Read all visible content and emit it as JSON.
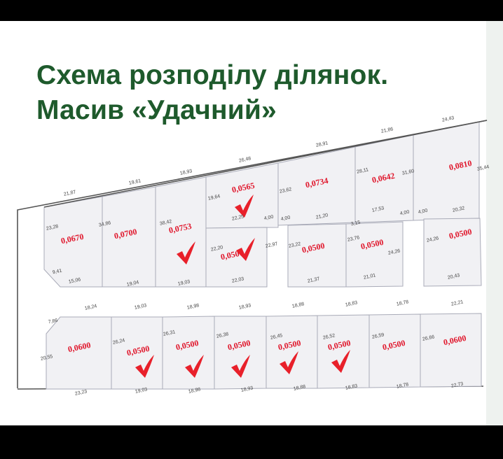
{
  "title": {
    "line1": "Схема розподілу ділянок.",
    "line2": "Масив «Удачний»"
  },
  "colors": {
    "title": "#1e5a2c",
    "area_label": "#e0162b",
    "check": "#e8202a",
    "plot_fill": "#f1f1f4"
  },
  "plots": [
    {
      "area": "0,0670",
      "checked": false
    },
    {
      "area": "0,0700",
      "checked": false
    },
    {
      "area": "0,0753",
      "checked": true
    },
    {
      "area": "0,0565",
      "checked": true
    },
    {
      "area": "0,0500",
      "checked": true
    },
    {
      "area": "0,0734",
      "checked": false
    },
    {
      "area": "0,0642",
      "checked": false
    },
    {
      "area": "0,0810",
      "checked": false
    },
    {
      "area": "0,0500",
      "checked": false
    },
    {
      "area": "0,0500",
      "checked": false
    },
    {
      "area": "0,0500",
      "checked": false
    },
    {
      "area": "0,0600",
      "checked": false
    },
    {
      "area": "0,0500",
      "checked": true
    },
    {
      "area": "0,0500",
      "checked": true
    },
    {
      "area": "0,0500",
      "checked": true
    },
    {
      "area": "0,0500",
      "checked": true
    },
    {
      "area": "0,0500",
      "checked": true
    },
    {
      "area": "0,0500",
      "checked": false
    },
    {
      "area": "0,0600",
      "checked": false
    }
  ],
  "dimensions": [
    "21,87",
    "19,61",
    "18,93",
    "26,48",
    "28,91",
    "21,86",
    "24,43",
    "35,44",
    "23,28",
    "34,86",
    "38,42",
    "19,64",
    "22,25",
    "4,00",
    "4,00",
    "21,20",
    "23,62",
    "28,11",
    "31,60",
    "17,53",
    "4,00",
    "4,00",
    "20,32",
    "22,20",
    "22,97",
    "23,22",
    "3,15",
    "23,76",
    "24,26",
    "24,26",
    "9,41",
    "15,06",
    "19,04",
    "19,03",
    "22,03",
    "21,37",
    "21,01",
    "20,43",
    "7,86",
    "18,24",
    "19,03",
    "18,98",
    "18,93",
    "18,88",
    "18,83",
    "18,78",
    "22,21",
    "20,55",
    "26,24",
    "26,31",
    "26,38",
    "26,45",
    "26,52",
    "26,59",
    "26,66",
    "23,23",
    "19,03",
    "18,98",
    "18,93",
    "18,88",
    "18,83",
    "18,78",
    "22,73"
  ]
}
